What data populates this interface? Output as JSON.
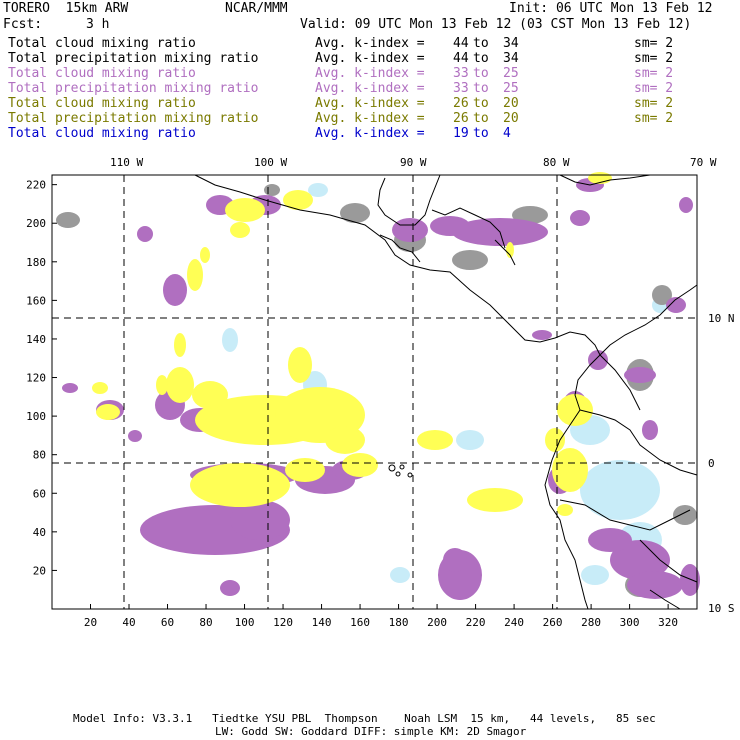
{
  "header": {
    "model": "TORERO  15km ARW",
    "org": "NCAR/MMM",
    "init": "Init: 06 UTC Mon 13 Feb 12",
    "fcst_label": "Fcst:",
    "fcst_value": "3 h",
    "valid": "Valid: 09 UTC Mon 13 Feb 12 (03 CST Mon 13 Feb 12)"
  },
  "legend": [
    {
      "name": "Total cloud mixing ratio",
      "kindex": "Avg. k-index =",
      "from": "44",
      "to_word": "to",
      "to": "34",
      "sm": "sm= 2",
      "color": "#000000"
    },
    {
      "name": "Total precipitation mixing ratio",
      "kindex": "Avg. k-index =",
      "from": "44",
      "to_word": "to",
      "to": "34",
      "sm": "sm= 2",
      "color": "#000000"
    },
    {
      "name": "Total cloud mixing ratio",
      "kindex": "Avg. k-index =",
      "from": "33",
      "to_word": "to",
      "to": "25",
      "sm": "sm= 2",
      "color": "#b06fc0"
    },
    {
      "name": "Total precipitation mixing ratio",
      "kindex": "Avg. k-index =",
      "from": "33",
      "to_word": "to",
      "to": "25",
      "sm": "sm= 2",
      "color": "#b06fc0"
    },
    {
      "name": "Total cloud mixing ratio",
      "kindex": "Avg. k-index =",
      "from": "26",
      "to_word": "to",
      "to": "20",
      "sm": "sm= 2",
      "color": "#7a7a00"
    },
    {
      "name": "Total precipitation mixing ratio",
      "kindex": "Avg. k-index =",
      "from": "26",
      "to_word": "to",
      "to": "20",
      "sm": "sm= 2",
      "color": "#7a7a00"
    },
    {
      "name": "Total cloud mixing ratio",
      "kindex": "Avg. k-index =",
      "from": "19",
      "to_word": "to",
      "to": "4",
      "sm": "",
      "color": "#0000cc"
    }
  ],
  "map": {
    "lon_labels": [
      "110 W",
      "100 W",
      "90 W",
      "80 W",
      "70 W"
    ],
    "lat_labels": [
      "10 N",
      "0",
      "10 S"
    ],
    "x_ticks": [
      "20",
      "40",
      "60",
      "80",
      "100",
      "120",
      "140",
      "160",
      "180",
      "200",
      "220",
      "240",
      "260",
      "280",
      "300",
      "320"
    ],
    "y_ticks": [
      "20",
      "40",
      "60",
      "80",
      "100",
      "120",
      "140",
      "160",
      "180",
      "200",
      "220"
    ],
    "colors": {
      "gray": "#9a9a9a",
      "purple": "#b06fc0",
      "yellow": "#ffff55",
      "lightblue": "#c8ecf8",
      "coast": "#000000"
    }
  },
  "footer": {
    "line1": "Model Info: V3.3.1   Tiedtke YSU PBL  Thompson    Noah LSM  15 km,   44 levels,   85 sec",
    "line2": "LW: Godd SW: Goddard DIFF: simple KM: 2D Smagor"
  }
}
